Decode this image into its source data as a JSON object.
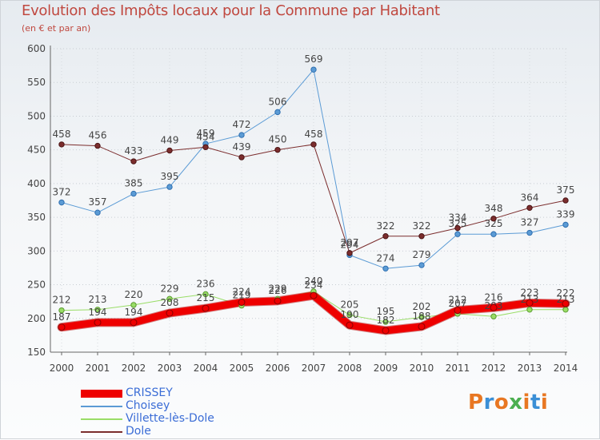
{
  "header": {
    "title": "Evolution des Impôts locaux pour la Commune par Habitant",
    "subtitle": "(en € et par an)"
  },
  "logo": {
    "text": "Proxiti",
    "colors": [
      "#e87722",
      "#3b8fd6",
      "#e87722",
      "#4caf50",
      "#e87722",
      "#3b8fd6",
      "#e87722"
    ]
  },
  "chart_data": {
    "type": "line",
    "title": "Evolution des Impôts locaux pour la Commune par Habitant",
    "subtitle": "(en € et par an)",
    "xlabel": "",
    "ylabel": "",
    "x": [
      "2000",
      "2001",
      "2002",
      "2003",
      "2004",
      "2005",
      "2006",
      "2007",
      "2008",
      "2009",
      "2010",
      "2011",
      "2012",
      "2013",
      "2014"
    ],
    "ylim": [
      150,
      600
    ],
    "yticks": [
      150,
      200,
      250,
      300,
      350,
      400,
      450,
      500,
      550,
      600
    ],
    "grid": true,
    "legend_position": "bottom-left",
    "series": [
      {
        "name": "CRISSEY",
        "color": "#ee0000",
        "width": 9,
        "values": [
          187,
          194,
          194,
          208,
          215,
          224,
          226,
          234,
          190,
          182,
          188,
          212,
          216,
          223,
          222
        ]
      },
      {
        "name": "Choisey",
        "color": "#5b9bd5",
        "width": 1,
        "values": [
          372,
          357,
          385,
          395,
          459,
          472,
          506,
          569,
          294,
          274,
          279,
          325,
          325,
          327,
          339
        ]
      },
      {
        "name": "Villette-lès-Dole",
        "color": "#99dd66",
        "width": 1,
        "values": [
          212,
          213,
          220,
          229,
          236,
          219,
          229,
          240,
          205,
          195,
          202,
          207,
          203,
          213,
          213
        ]
      },
      {
        "name": "Dole",
        "color": "#7b2d2d",
        "width": 1,
        "values": [
          458,
          456,
          433,
          449,
          454,
          439,
          450,
          458,
          297,
          322,
          322,
          334,
          348,
          364,
          375
        ]
      }
    ]
  }
}
